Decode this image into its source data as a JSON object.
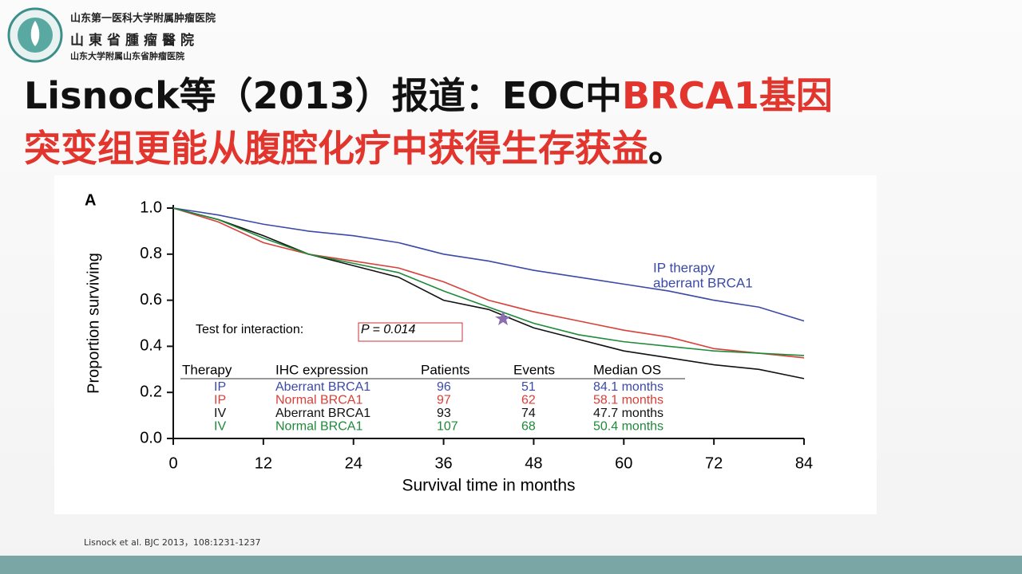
{
  "slide": {
    "logo": [
      "山东第一医科大学附属肿瘤医院",
      "山東省腫瘤醫院",
      "山东大学附属山东省肿瘤医院"
    ],
    "title": [
      "Lisnock等（2013）报道：EOC中",
      "BRCA1基因",
      "突变组更能从腹腔化疗中获得生存获益",
      "。"
    ],
    "citation": "Lisnock et al. BJC 2013，108:1231-1237"
  },
  "chart_data": {
    "type": "line",
    "panel_label": "A",
    "x_label": "Survival time in months",
    "y_label": "Proportion surviving",
    "xlim": [
      0,
      84
    ],
    "ylim": [
      0,
      1
    ],
    "xticks": [
      0,
      12,
      24,
      36,
      48,
      60,
      72,
      84
    ],
    "yticks": [
      {
        "value": 0,
        "label": "0.0"
      },
      0.2,
      0.4,
      0.6,
      0.8,
      {
        "value": 1,
        "label": "1.0"
      }
    ],
    "x": [
      0,
      6,
      12,
      18,
      24,
      30,
      36,
      42,
      48,
      54,
      60,
      66,
      72,
      78,
      84
    ],
    "series": [
      {
        "name": "Aberrant BRCA1",
        "color": "#3b4aa8",
        "values": [
          1.0,
          0.97,
          0.93,
          0.9,
          0.88,
          0.85,
          0.8,
          0.77,
          0.73,
          0.7,
          0.67,
          0.64,
          0.6,
          0.57,
          0.51
        ]
      },
      {
        "name": "Normal BRCA1",
        "color": "#d9403a",
        "values": [
          1.0,
          0.94,
          0.85,
          0.8,
          0.77,
          0.74,
          0.68,
          0.6,
          0.55,
          0.51,
          0.47,
          0.44,
          0.39,
          0.37,
          0.35
        ]
      },
      {
        "name": "Aberrant BRCA1",
        "color": "#111111",
        "values": [
          1.0,
          0.95,
          0.88,
          0.8,
          0.75,
          0.7,
          0.6,
          0.56,
          0.48,
          0.43,
          0.38,
          0.35,
          0.32,
          0.3,
          0.26
        ]
      },
      {
        "name": "Normal BRCA1",
        "color": "#1f8a3a",
        "values": [
          1.0,
          0.95,
          0.87,
          0.8,
          0.76,
          0.72,
          0.64,
          0.57,
          0.5,
          0.45,
          0.42,
          0.4,
          0.38,
          0.37,
          0.36
        ]
      }
    ],
    "annotations": [
      "IP therapy",
      "aberrant BRCA1",
      "Test for interaction:",
      "P = 0.014"
    ],
    "table": {
      "columns": [
        "Therapy",
        "IHC expression",
        "Patients",
        "Events",
        "Median OS"
      ],
      "rows": [
        [
          "IP",
          "Aberrant BRCA1",
          "96",
          "51",
          "84.1 months"
        ],
        [
          "IP",
          "Normal BRCA1",
          "97",
          "62",
          "58.1 months"
        ],
        [
          "IV",
          "Aberrant BRCA1",
          "93",
          "74",
          "47.7 months"
        ],
        [
          "IV",
          "Normal BRCA1",
          "107",
          "68",
          "50.4 months"
        ]
      ]
    }
  }
}
